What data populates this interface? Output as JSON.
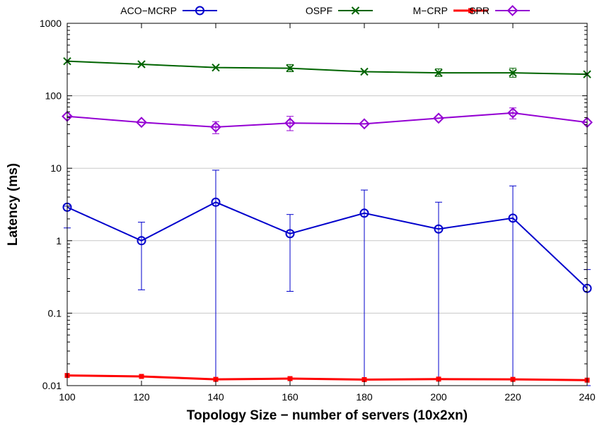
{
  "chart_data": {
    "type": "line",
    "xlabel": "Topology Size − number of servers (10x2xn)",
    "ylabel": "Latency (ms)",
    "x": [
      100,
      120,
      140,
      160,
      180,
      200,
      220,
      240
    ],
    "x_ticks": [
      "100",
      "120",
      "140",
      "160",
      "180",
      "200",
      "220",
      "240"
    ],
    "xlim": [
      100,
      240
    ],
    "y_scale": "log",
    "ylim": [
      0.01,
      1000
    ],
    "y_ticks": [
      0.01,
      0.1,
      1,
      10,
      100,
      1000
    ],
    "y_tick_labels": [
      "0.01",
      "0.1",
      "1",
      "10",
      "100",
      "1000"
    ],
    "grid": "horizontal",
    "legend_position": "top",
    "series": [
      {
        "name": "ACO−MCRP",
        "color": "#0000cc",
        "marker": "circle",
        "values": [
          2.9,
          1.0,
          3.4,
          1.25,
          2.4,
          1.45,
          2.05,
          0.22
        ],
        "err_low": [
          1.5,
          0.21,
          0.01,
          0.2,
          0.01,
          0.01,
          0.01,
          0.01
        ],
        "err_high": [
          3.0,
          1.8,
          9.4,
          2.3,
          5.0,
          3.4,
          5.7,
          0.4
        ]
      },
      {
        "name": "OSPF",
        "color": "#006400",
        "marker": "x",
        "values": [
          300,
          272,
          245,
          240,
          215,
          207,
          207,
          198
        ],
        "err_low": [
          300,
          272,
          245,
          215,
          215,
          185,
          180,
          198
        ],
        "err_high": [
          300,
          272,
          245,
          270,
          215,
          235,
          240,
          198
        ]
      },
      {
        "name": "M−CRP",
        "color": "#ff0000",
        "marker": "square",
        "values": [
          0.0138,
          0.0134,
          0.0122,
          0.0125,
          0.0121,
          0.0123,
          0.0122,
          0.0119
        ]
      },
      {
        "name": "SPR",
        "color": "#9400d3",
        "marker": "diamond",
        "values": [
          52,
          43,
          37,
          42,
          41,
          49,
          58,
          43
        ],
        "err_low": [
          52,
          43,
          30,
          33,
          41,
          49,
          48,
          43
        ],
        "err_high": [
          52,
          43,
          44,
          52,
          41,
          49,
          68,
          43
        ]
      }
    ]
  }
}
